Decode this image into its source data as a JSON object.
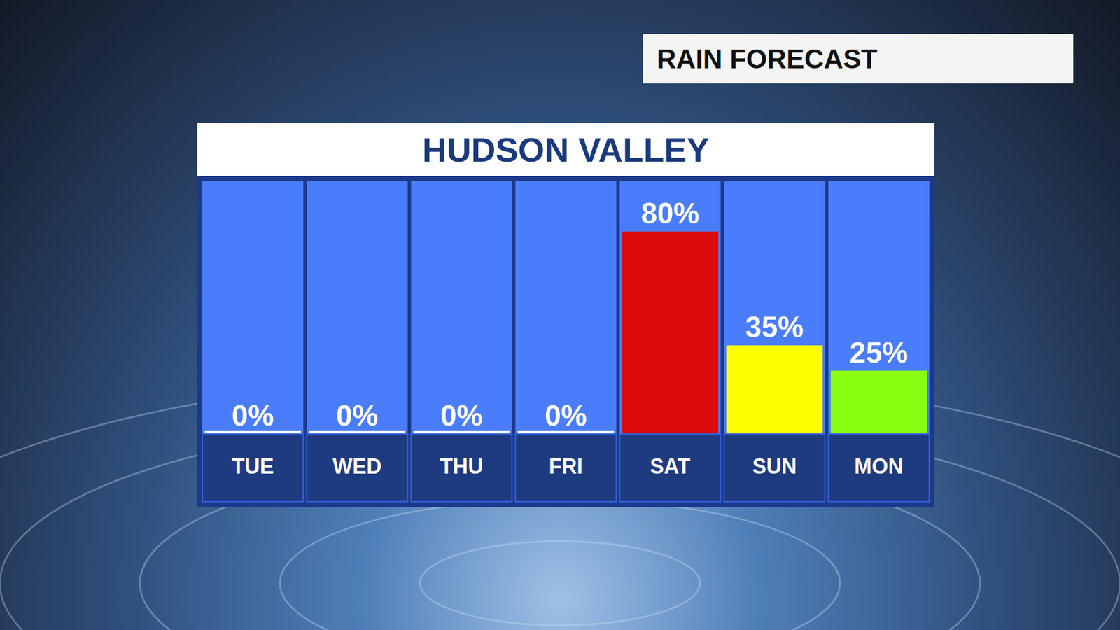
{
  "chart_data": {
    "type": "bar",
    "title": "HUDSON VALLEY",
    "subtitle": "RAIN FORECAST",
    "categories": [
      "TUE",
      "WED",
      "THU",
      "FRI",
      "SAT",
      "SUN",
      "MON"
    ],
    "values": [
      0,
      0,
      0,
      0,
      80,
      35,
      25
    ],
    "value_labels": [
      "0%",
      "0%",
      "0%",
      "0%",
      "80%",
      "35%",
      "25%"
    ],
    "colors": [
      "#ffffff",
      "#ffffff",
      "#ffffff",
      "#ffffff",
      "#dd0b0b",
      "#ffff00",
      "#88ff11"
    ],
    "ylim": [
      0,
      100
    ],
    "data_labels": true,
    "tick_labels": false,
    "grid": false
  }
}
